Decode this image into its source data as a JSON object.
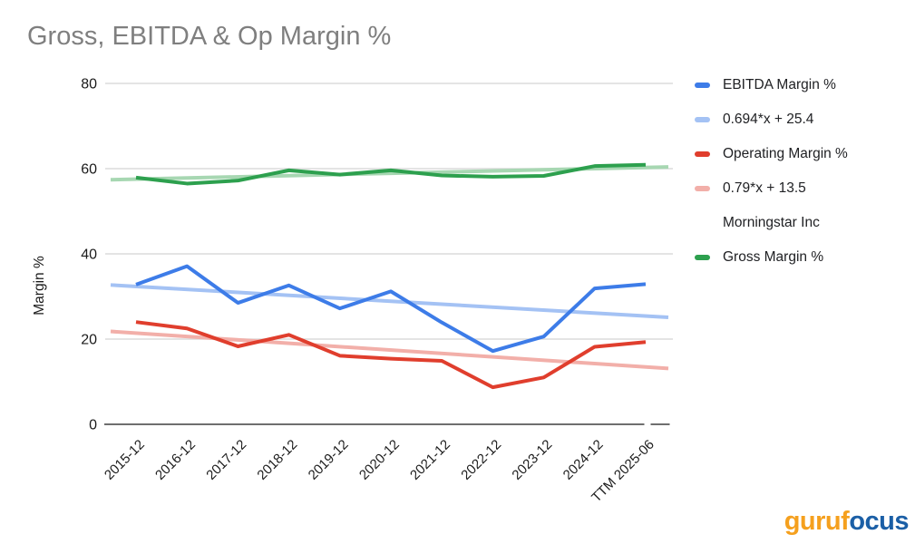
{
  "chart_data": {
    "type": "line",
    "title": "Gross, EBITDA & Op Margin %",
    "ylabel": "Margin %",
    "xlabel": "",
    "ylim": [
      0,
      80
    ],
    "yticks": [
      80,
      60,
      40,
      20,
      0
    ],
    "grid": true,
    "legend_position": "right",
    "categories": [
      "2015-12",
      "2016-12",
      "2017-12",
      "2018-12",
      "2019-12",
      "2020-12",
      "2021-12",
      "2022-12",
      "2023-12",
      "2024-12",
      "TTM 2025-06"
    ],
    "series": [
      {
        "name": "Gross Margin trend",
        "kind": "trend",
        "color": "#A7D7B2",
        "in_legend": false,
        "values": [
          57.4,
          60.4
        ]
      },
      {
        "name": "0.694*x + 25.4",
        "kind": "trend",
        "color": "#A4C2F4",
        "in_legend": true,
        "values": [
          32.7,
          25.1
        ]
      },
      {
        "name": "0.79*x + 13.5",
        "kind": "trend",
        "color": "#F2AFA9",
        "in_legend": true,
        "values": [
          21.8,
          13.1
        ]
      },
      {
        "name": "Gross Margin %",
        "kind": "data",
        "color": "#2DA04E",
        "in_legend": true,
        "values": [
          57.9,
          56.5,
          57.2,
          59.6,
          58.6,
          59.6,
          58.4,
          58.1,
          58.3,
          60.6,
          60.9
        ]
      },
      {
        "name": "EBITDA Margin %",
        "kind": "data",
        "color": "#3D7CE8",
        "in_legend": true,
        "values": [
          32.8,
          37.1,
          28.5,
          32.6,
          27.2,
          31.2,
          23.9,
          17.2,
          20.6,
          31.9,
          32.9
        ]
      },
      {
        "name": "Operating Margin %",
        "kind": "data",
        "color": "#E03E2D",
        "in_legend": true,
        "values": [
          24.0,
          22.5,
          18.3,
          21.0,
          16.1,
          15.4,
          14.9,
          8.7,
          11.0,
          18.2,
          19.3
        ]
      }
    ],
    "legend": [
      {
        "label": "EBITDA Margin %",
        "color": "#3D7CE8",
        "swatch": true
      },
      {
        "label": "0.694*x + 25.4",
        "color": "#A4C2F4",
        "swatch": true
      },
      {
        "label": "Operating Margin %",
        "color": "#E03E2D",
        "swatch": true
      },
      {
        "label": "0.79*x + 13.5",
        "color": "#F2AFA9",
        "swatch": true
      },
      {
        "label": "Morningstar Inc",
        "color": null,
        "swatch": false
      },
      {
        "label": "Gross Margin %",
        "color": "#2DA04E",
        "swatch": true
      }
    ]
  },
  "branding": {
    "logo_text_orange": "guruf",
    "logo_text_blue": "ocus",
    "orange_color": "#F5A01E",
    "blue_color": "#1B5FA6"
  }
}
